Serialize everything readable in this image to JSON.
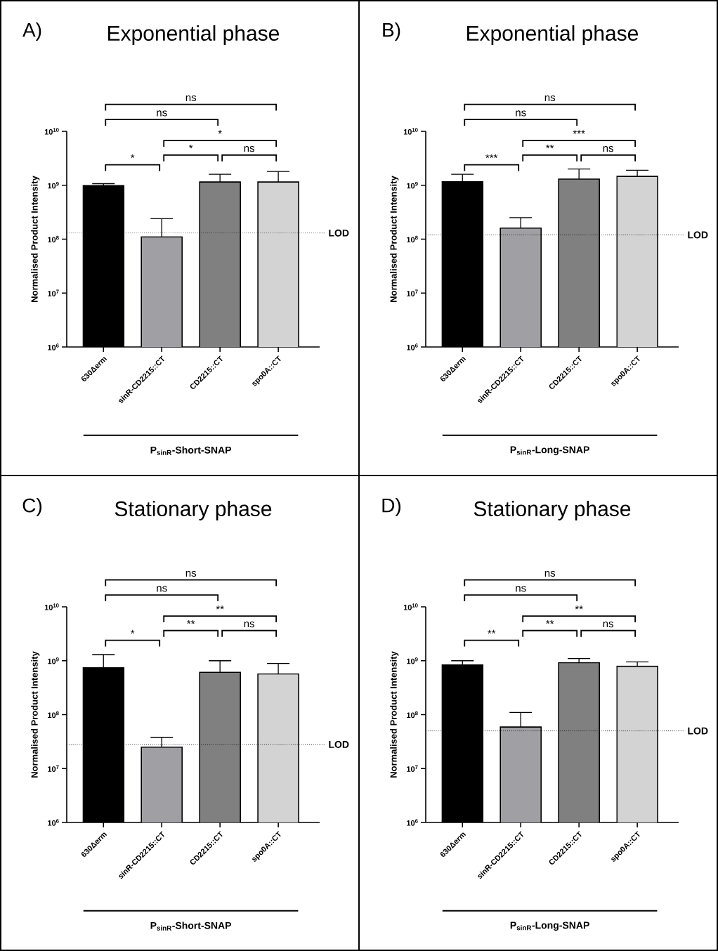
{
  "chart_data": [
    {
      "type": "bar",
      "title": "Exponential phase",
      "xlabel": "P$_{sinR}$-Short-SNAP",
      "ylabel": "Normalised Product Intensity",
      "categories": [
        "630Δerm",
        "sinR-CD2215::CT",
        "CD2215::CT",
        "spo0A::CT"
      ],
      "values": [
        980000000,
        110000000,
        1150000000,
        1150000000
      ],
      "colors": [
        "#000000",
        "#a0a0a4",
        "#808080",
        "#d3d3d3"
      ],
      "errors": [
        [
          980000000,
          1070000000
        ],
        [
          110000000,
          240000000
        ],
        [
          1150000000,
          1600000000
        ],
        [
          1150000000,
          1800000000
        ]
      ],
      "log": "y",
      "ylim": [
        1000000,
        10000000000
      ],
      "yticks": [
        {
          "value": 1000000,
          "label": "10$^{6}$"
        },
        {
          "value": 10000000,
          "label": "10$^{7}$"
        },
        {
          "value": 100000000,
          "label": "10$^{8}$"
        },
        {
          "value": 1000000000,
          "label": "10$^{9}$"
        },
        {
          "value": 10000000000,
          "label": "10$^{10}$"
        }
      ],
      "ref_lines": [
        {
          "axis": "y",
          "value": 130000000,
          "label": "LOD",
          "line_style": "dotted"
        }
      ],
      "annotations": [
        "A)",
        "ns",
        "ns",
        "*",
        "*",
        "*",
        "ns"
      ]
    },
    {
      "type": "bar",
      "title": "Exponential phase",
      "xlabel": "P$_{sinR}$-Long-SNAP",
      "ylabel": "Normalised Product Intensity",
      "categories": [
        "630Δerm",
        "sinR-CD2215::CT",
        "CD2215::CT",
        "spo0A::CT"
      ],
      "values": [
        1160000000,
        160000000,
        1300000000,
        1460000000
      ],
      "colors": [
        "#000000",
        "#a0a0a4",
        "#808080",
        "#d3d3d3"
      ],
      "errors": [
        [
          1160000000,
          1600000000
        ],
        [
          160000000,
          250000000
        ],
        [
          1300000000,
          2000000000
        ],
        [
          1460000000,
          1900000000
        ]
      ],
      "log": "y",
      "ylim": [
        1000000,
        10000000000
      ],
      "yticks": [
        {
          "value": 1000000,
          "label": "10$^{6}$"
        },
        {
          "value": 10000000,
          "label": "10$^{7}$"
        },
        {
          "value": 100000000,
          "label": "10$^{8}$"
        },
        {
          "value": 1000000000,
          "label": "10$^{9}$"
        },
        {
          "value": 10000000000,
          "label": "10$^{10}$"
        }
      ],
      "ref_lines": [
        {
          "axis": "y",
          "value": 120000000,
          "label": "LOD",
          "line_style": "dotted"
        }
      ],
      "annotations": [
        "B)",
        "ns",
        "ns",
        "***",
        "***",
        "**",
        "ns"
      ]
    },
    {
      "type": "bar",
      "title": "Stationary phase",
      "xlabel": "P$_{sinR}$-Short-SNAP",
      "ylabel": "Normalised Product Intensity",
      "categories": [
        "630Δerm",
        "sinR-CD2215::CT",
        "CD2215::CT",
        "spo0A::CT"
      ],
      "values": [
        740000000,
        25000000,
        610000000,
        570000000
      ],
      "colors": [
        "#000000",
        "#a0a0a4",
        "#808080",
        "#d3d3d3"
      ],
      "errors": [
        [
          740000000,
          1300000000
        ],
        [
          25000000,
          38000000
        ],
        [
          610000000,
          1000000000
        ],
        [
          570000000,
          890000000
        ]
      ],
      "log": "y",
      "ylim": [
        1000000,
        10000000000
      ],
      "yticks": [
        {
          "value": 1000000,
          "label": "10$^{6}$"
        },
        {
          "value": 10000000,
          "label": "10$^{7}$"
        },
        {
          "value": 100000000,
          "label": "10$^{8}$"
        },
        {
          "value": 1000000000,
          "label": "10$^{9}$"
        },
        {
          "value": 10000000000,
          "label": "10$^{10}$"
        }
      ],
      "ref_lines": [
        {
          "axis": "y",
          "value": 28000000,
          "label": "LOD",
          "line_style": "dotted"
        }
      ],
      "annotations": [
        "C)",
        "ns",
        "ns",
        "**",
        "*",
        "**",
        "ns"
      ]
    },
    {
      "type": "bar",
      "title": "Stationary phase",
      "xlabel": "P$_{sinR}$-Long-SNAP",
      "ylabel": "Normalised Product Intensity",
      "categories": [
        "630Δerm",
        "sinR-CD2215::CT",
        "CD2215::CT",
        "spo0A::CT"
      ],
      "values": [
        840000000,
        59000000,
        920000000,
        790000000
      ],
      "colors": [
        "#000000",
        "#a0a0a4",
        "#808080",
        "#d3d3d3"
      ],
      "errors": [
        [
          840000000,
          1000000000
        ],
        [
          59000000,
          110000000
        ],
        [
          920000000,
          1100000000
        ],
        [
          790000000,
          950000000
        ]
      ],
      "log": "y",
      "ylim": [
        1000000,
        10000000000
      ],
      "yticks": [
        {
          "value": 1000000,
          "label": "10$^{6}$"
        },
        {
          "value": 10000000,
          "label": "10$^{7}$"
        },
        {
          "value": 100000000,
          "label": "10$^{8}$"
        },
        {
          "value": 1000000000,
          "label": "10$^{9}$"
        },
        {
          "value": 10000000000,
          "label": "10$^{10}$"
        }
      ],
      "ref_lines": [
        {
          "axis": "y",
          "value": 50000000,
          "label": "LOD",
          "line_style": "dotted"
        }
      ],
      "annotations": [
        "D)",
        "ns",
        "ns",
        "**",
        "**",
        "**",
        "ns"
      ]
    }
  ]
}
